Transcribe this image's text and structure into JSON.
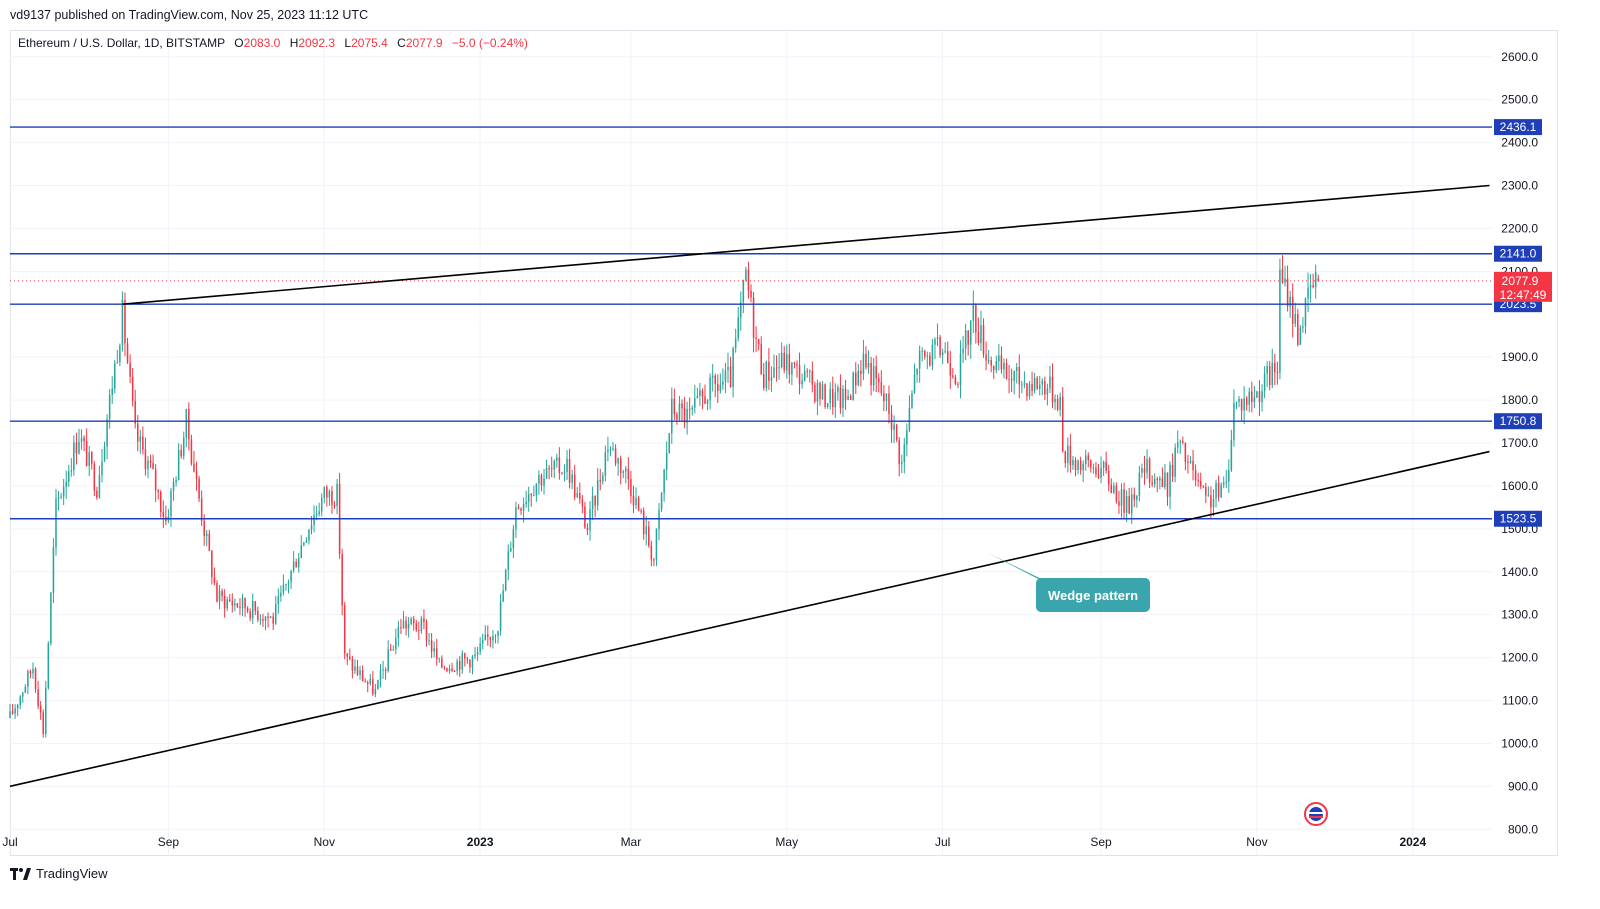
{
  "header": {
    "published": "vd9137 published on TradingView.com, Nov 25, 2023 11:12 UTC"
  },
  "legend": {
    "symbol": "Ethereum / U.S. Dollar, 1D, BITSTAMP",
    "o_label": "O",
    "o_value": "2083.0",
    "h_label": "H",
    "h_value": "2092.3",
    "l_label": "L",
    "l_value": "2075.4",
    "c_label": "C",
    "c_value": "2077.9",
    "change": "−5.0 (−0.24%)"
  },
  "footer": {
    "brand": "TradingView",
    "logo_icon": "tradingview-logo-icon"
  },
  "colors": {
    "up": "#26a69a",
    "down": "#f23645",
    "level": "#1e3fb8",
    "trend": "#000000",
    "callout": "#3aa5ad"
  },
  "chart_data": {
    "type": "candlestick",
    "y_axis": {
      "ticks": [
        "2600.0",
        "2500.0",
        "2400.0",
        "2300.0",
        "2200.0",
        "2100.0",
        "1900.0",
        "1800.0",
        "1700.0",
        "1600.0",
        "1500.0",
        "1400.0",
        "1300.0",
        "1200.0",
        "1100.0",
        "1000.0",
        "900.0",
        "800.0"
      ],
      "range": [
        740,
        2660
      ],
      "side": "right"
    },
    "x_axis": {
      "labels": [
        "Jul",
        "Sep",
        "Nov",
        "2023",
        "Mar",
        "May",
        "Jul",
        "Sep",
        "Nov",
        "2024"
      ],
      "range": [
        "2022-07-01",
        "2024-02-01"
      ]
    },
    "current_price": {
      "value": 2077.9,
      "label": "2077.9",
      "countdown": "12:47:49"
    },
    "horizontal_levels": [
      {
        "value": 2436.1,
        "label": "2436.1"
      },
      {
        "value": 2141.0,
        "label": "2141.0"
      },
      {
        "value": 2023.5,
        "label": "2023.5"
      },
      {
        "value": 1750.8,
        "label": "1750.8"
      },
      {
        "value": 1523.5,
        "label": "1523.5"
      }
    ],
    "trendlines": [
      {
        "name": "upper",
        "from": {
          "date": "2022-08-14",
          "price": 2023.5
        },
        "to": {
          "date": "2024-01-31",
          "price": 2300
        }
      },
      {
        "name": "lower",
        "from": {
          "date": "2022-07-01",
          "price": 900
        },
        "to": {
          "date": "2024-01-31",
          "price": 1680
        }
      }
    ],
    "annotation": {
      "text": "Wedge pattern"
    },
    "anchors": [
      [
        "2022-07-01",
        1060
      ],
      [
        "2022-07-10",
        1180
      ],
      [
        "2022-07-14",
        1030
      ],
      [
        "2022-07-19",
        1550
      ],
      [
        "2022-07-28",
        1720
      ],
      [
        "2022-08-04",
        1600
      ],
      [
        "2022-08-14",
        2000
      ],
      [
        "2022-08-19",
        1720
      ],
      [
        "2022-08-25",
        1640
      ],
      [
        "2022-08-31",
        1520
      ],
      [
        "2022-09-08",
        1750
      ],
      [
        "2022-09-15",
        1500
      ],
      [
        "2022-09-20",
        1340
      ],
      [
        "2022-10-01",
        1320
      ],
      [
        "2022-10-12",
        1290
      ],
      [
        "2022-10-26",
        1510
      ],
      [
        "2022-11-01",
        1580
      ],
      [
        "2022-11-06",
        1580
      ],
      [
        "2022-11-09",
        1200
      ],
      [
        "2022-11-21",
        1120
      ],
      [
        "2022-12-01",
        1280
      ],
      [
        "2022-12-10",
        1270
      ],
      [
        "2022-12-16",
        1180
      ],
      [
        "2022-12-30",
        1200
      ],
      [
        "2023-01-08",
        1280
      ],
      [
        "2023-01-15",
        1550
      ],
      [
        "2023-01-24",
        1620
      ],
      [
        "2023-02-04",
        1650
      ],
      [
        "2023-02-12",
        1500
      ],
      [
        "2023-02-20",
        1700
      ],
      [
        "2023-02-28",
        1620
      ],
      [
        "2023-03-10",
        1430
      ],
      [
        "2023-03-17",
        1780
      ],
      [
        "2023-03-24",
        1760
      ],
      [
        "2023-03-31",
        1820
      ],
      [
        "2023-04-09",
        1850
      ],
      [
        "2023-04-15",
        2090
      ],
      [
        "2023-04-19",
        1940
      ],
      [
        "2023-04-22",
        1860
      ],
      [
        "2023-04-30",
        1890
      ],
      [
        "2023-05-08",
        1850
      ],
      [
        "2023-05-15",
        1810
      ],
      [
        "2023-05-24",
        1800
      ],
      [
        "2023-05-31",
        1900
      ],
      [
        "2023-06-10",
        1780
      ],
      [
        "2023-06-15",
        1650
      ],
      [
        "2023-06-21",
        1890
      ],
      [
        "2023-07-01",
        1920
      ],
      [
        "2023-07-07",
        1860
      ],
      [
        "2023-07-13",
        2000
      ],
      [
        "2023-07-19",
        1900
      ],
      [
        "2023-07-25",
        1860
      ],
      [
        "2023-08-03",
        1840
      ],
      [
        "2023-08-10",
        1840
      ],
      [
        "2023-08-16",
        1800
      ],
      [
        "2023-08-17",
        1680
      ],
      [
        "2023-08-25",
        1650
      ],
      [
        "2023-09-01",
        1640
      ],
      [
        "2023-09-11",
        1550
      ],
      [
        "2023-09-18",
        1640
      ],
      [
        "2023-09-27",
        1600
      ],
      [
        "2023-10-01",
        1700
      ],
      [
        "2023-10-06",
        1640
      ],
      [
        "2023-10-12",
        1560
      ],
      [
        "2023-10-20",
        1600
      ],
      [
        "2023-10-23",
        1790
      ],
      [
        "2023-10-31",
        1810
      ],
      [
        "2023-11-09",
        1880
      ],
      [
        "2023-11-10",
        2080
      ],
      [
        "2023-11-13",
        2050
      ],
      [
        "2023-11-17",
        1960
      ],
      [
        "2023-11-20",
        2010
      ],
      [
        "2023-11-22",
        2060
      ],
      [
        "2023-11-25",
        2078
      ]
    ]
  }
}
